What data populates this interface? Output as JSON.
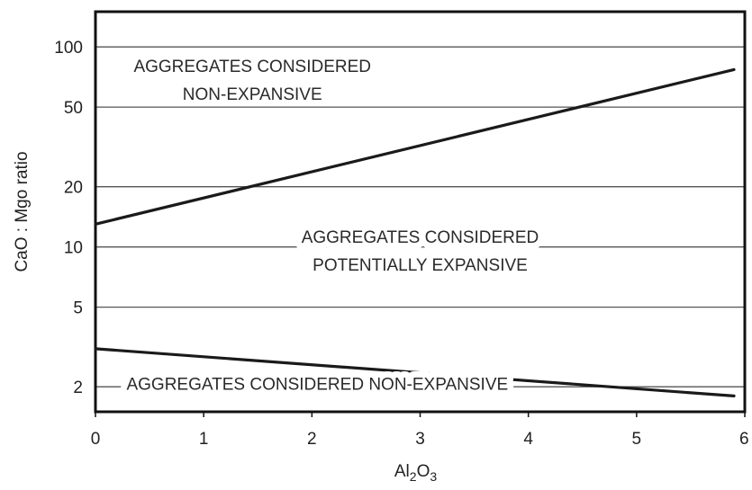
{
  "chart_data": {
    "type": "line",
    "xlabel": "Al2O3",
    "xlabel_parts": {
      "base_1": "Al",
      "sub_1": "2",
      "base_2": "O",
      "sub_2": "3"
    },
    "ylabel": "CaO : Mgo ratio",
    "xlim": [
      0,
      6
    ],
    "ylim": [
      1.5,
      150
    ],
    "yscale": "log",
    "x_ticks": [
      0,
      1,
      2,
      3,
      4,
      5,
      6
    ],
    "y_ticks": [
      2,
      5,
      10,
      20,
      50,
      100
    ],
    "x_tick_labels": [
      "0",
      "1",
      "2",
      "3",
      "4",
      "5",
      "6"
    ],
    "y_tick_labels": [
      "2",
      "5",
      "10",
      "20",
      "50",
      "100"
    ],
    "grid": "horizontal",
    "series": [
      {
        "x": [
          0,
          5.9
        ],
        "y": [
          13,
          77
        ]
      },
      {
        "x": [
          0,
          5.9
        ],
        "y": [
          3.1,
          1.8
        ]
      }
    ],
    "annotations": [
      {
        "lines": [
          "AGGREGATES CONSIDERED",
          "NON-EXPANSIVE"
        ],
        "x": 1.45,
        "y": 75
      },
      {
        "lines": [
          "AGGREGATES CONSIDERED",
          "POTENTIALLY EXPANSIVE"
        ],
        "x": 3.0,
        "y": 10.5
      },
      {
        "lines": [
          "AGGREGATES CONSIDERED NON-EXPANSIVE"
        ],
        "x": 2.05,
        "y": 1.93
      }
    ]
  }
}
